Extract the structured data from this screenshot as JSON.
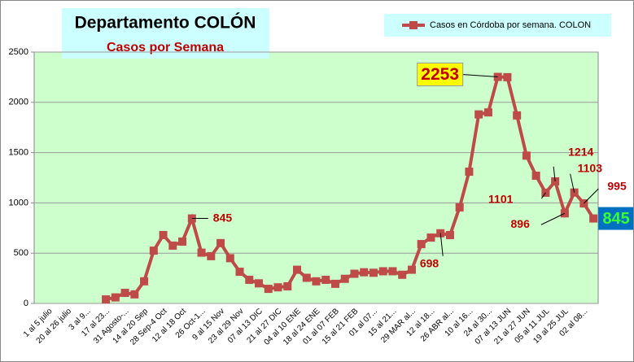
{
  "chart_data": {
    "type": "line",
    "title": "Departamento COLÓN",
    "subtitle": "Casos por Semana",
    "categories": [
      null,
      "1 al 5 julio",
      null,
      "20 al 26 julio",
      null,
      "3 al 9...",
      null,
      "17 al 23...",
      null,
      "31 Agosto-...",
      null,
      "14 al 20 Sep",
      null,
      "28 Sep-4 Oct",
      null,
      "12 al 18 Oct",
      null,
      "26 Oct-1...",
      null,
      "9 al 15 Nov",
      null,
      "23 al 29 Nov",
      null,
      "07 al 13 DIC",
      null,
      "21 al 27 DIC",
      null,
      "04 al 10 ENE",
      null,
      "18 al 24 ENE",
      null,
      "01 al 07 FEB",
      null,
      "15 al 21 FEB",
      null,
      "01 al 07...",
      null,
      "15 al 21...",
      null,
      "29 MAR al...",
      null,
      "12 al 18...",
      null,
      "26 ABR al...",
      null,
      "10 al 16...",
      null,
      "24 al 30...",
      null,
      "07 al 13 JUN",
      null,
      "21 al 27 JUN",
      null,
      "05 al 11 JUL",
      null,
      "19 al 25 JUL",
      null,
      "02 al 08...",
      null
    ],
    "series": [
      {
        "name": "Casos en Córdoba por semana. COLON",
        "color": "#be4b48",
        "values": [
          null,
          null,
          null,
          null,
          null,
          null,
          null,
          40,
          60,
          105,
          90,
          220,
          525,
          680,
          575,
          615,
          845,
          505,
          470,
          600,
          450,
          315,
          235,
          200,
          145,
          160,
          170,
          335,
          255,
          220,
          235,
          195,
          245,
          295,
          310,
          305,
          320,
          320,
          285,
          335,
          590,
          655,
          698,
          680,
          955,
          1310,
          1880,
          1900,
          2253,
          2250,
          1870,
          1470,
          1270,
          1101,
          1214,
          896,
          1103,
          995,
          845
        ]
      }
    ],
    "ylim": [
      0,
      2500
    ],
    "yticks": [
      0,
      500,
      1000,
      1500,
      2000,
      2500
    ],
    "grid": true,
    "plot_background": "#ccffcc"
  }
}
